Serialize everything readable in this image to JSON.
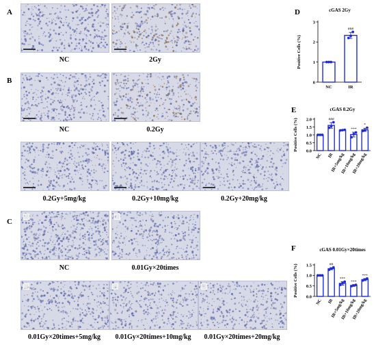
{
  "panels": {
    "A": {
      "letter": "A",
      "captions": [
        "NC",
        "2Gy"
      ]
    },
    "B": {
      "letter": "B",
      "captions": [
        "NC",
        "0.2Gy",
        "0.2Gy+5mg/kg",
        "0.2Gy+10mg/kg",
        "0.2Gy+20mg/kg"
      ]
    },
    "C": {
      "letter": "C",
      "captions": [
        "NC",
        "0.01Gy×20times",
        "0.01Gy×20times+5mg/kg",
        "0.01Gy×20times+10mg/kg",
        "0.01Gy×20times+20mg/kg"
      ]
    },
    "D": {
      "letter": "D"
    },
    "E": {
      "letter": "E"
    },
    "F": {
      "letter": "F"
    }
  },
  "colors": {
    "bar": "#1f2bd6",
    "point": "#1f2bd6",
    "tissue_bg": "#d7d9e6",
    "tissue_blue": "#5b67a8",
    "tissue_brown": "#8b6a4a"
  },
  "chart_data": [
    {
      "type": "bar",
      "panel": "D",
      "title": "cGAS 2Gy",
      "ylabel": "Positive Cells (%)",
      "categories": [
        "NC",
        "IR"
      ],
      "values": [
        1.0,
        2.33
      ],
      "errors": [
        0.0,
        0.15
      ],
      "points": [
        [
          1.0,
          1.0,
          1.0
        ],
        [
          2.2,
          2.3,
          2.5
        ]
      ],
      "significance": [
        "",
        "###"
      ],
      "ylim": [
        0,
        3
      ],
      "yticks": [
        "0",
        "1",
        "2",
        "3"
      ],
      "xlabel_rotation": 0
    },
    {
      "type": "bar",
      "panel": "E",
      "title": "cGAS 0.2Gy",
      "ylabel": "Positive Cells (%)",
      "categories": [
        "NC",
        "IR",
        "IR+5mg/kg",
        "IR+10mg/kg",
        "IR+20mg/kg"
      ],
      "values": [
        1.0,
        1.6,
        1.3,
        1.02,
        1.32
      ],
      "errors": [
        0.0,
        0.18,
        0.03,
        0.15,
        0.1
      ],
      "points": [
        [
          1.0,
          1.0,
          1.0
        ],
        [
          1.45,
          1.55,
          1.8
        ],
        [
          1.28,
          1.3,
          1.32
        ],
        [
          0.85,
          1.05,
          1.15
        ],
        [
          1.25,
          1.3,
          1.45
        ]
      ],
      "significance": [
        "",
        "###",
        "",
        "***",
        "*"
      ],
      "ylim": [
        0,
        2.0
      ],
      "yticks": [
        "0.0",
        "0.5",
        "1.0",
        "1.5",
        "2.0"
      ],
      "xlabel_rotation": -60
    },
    {
      "type": "bar",
      "panel": "F",
      "title": "cGAS 0.01Gy×20times",
      "ylabel": "Positive Cells (%)",
      "categories": [
        "NC",
        "IR",
        "IR+5mg/kg",
        "IR+10mg/kg",
        "IR+20mg/kg"
      ],
      "values": [
        1.0,
        1.32,
        0.62,
        0.52,
        0.8
      ],
      "errors": [
        0.0,
        0.05,
        0.08,
        0.04,
        0.05
      ],
      "points": [
        [
          1.0,
          1.0,
          1.0
        ],
        [
          1.27,
          1.32,
          1.38
        ],
        [
          0.55,
          0.63,
          0.7
        ],
        [
          0.49,
          0.52,
          0.55
        ],
        [
          0.76,
          0.8,
          0.85
        ]
      ],
      "significance": [
        "",
        "##",
        "***",
        "***",
        "***"
      ],
      "ylim": [
        0,
        1.5
      ],
      "yticks": [
        "0.0",
        "0.5",
        "1.0",
        "1.5"
      ],
      "xlabel_rotation": -60
    }
  ]
}
